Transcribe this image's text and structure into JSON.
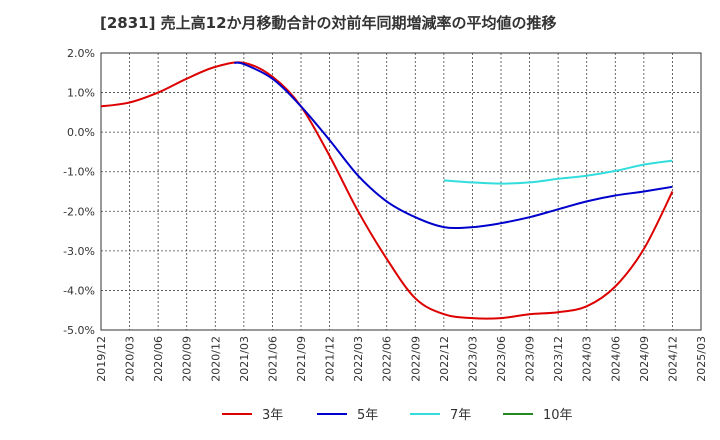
{
  "chart_data": {
    "type": "line",
    "title": "[2831]  売上高12か月移動合計の対前年同期増減率の平均値の推移",
    "xlabel": "",
    "ylabel": "",
    "ylim": [
      -5.0,
      2.0
    ],
    "y_ticks": [
      2.0,
      1.0,
      0.0,
      -1.0,
      -2.0,
      -3.0,
      -4.0,
      -5.0
    ],
    "y_tick_labels": [
      "2.0%",
      "1.0%",
      "0.0%",
      "-1.0%",
      "-2.0%",
      "-3.0%",
      "-4.0%",
      "-5.0%"
    ],
    "x_ticks": [
      "2019/12",
      "2020/03",
      "2020/06",
      "2020/09",
      "2020/12",
      "2021/03",
      "2021/06",
      "2021/09",
      "2021/12",
      "2022/03",
      "2022/06",
      "2022/09",
      "2022/12",
      "2023/03",
      "2023/06",
      "2023/09",
      "2023/12",
      "2024/03",
      "2024/06",
      "2024/09",
      "2024/12",
      "2025/03"
    ],
    "grid": true,
    "legend_position": "bottom",
    "series": [
      {
        "name": "3年",
        "color": "#dd0000",
        "points": [
          [
            "2019/12",
            0.65
          ],
          [
            "2020/03",
            0.75
          ],
          [
            "2020/06",
            1.0
          ],
          [
            "2020/09",
            1.35
          ],
          [
            "2020/12",
            1.65
          ],
          [
            "2021/03",
            1.75
          ],
          [
            "2021/06",
            1.4
          ],
          [
            "2021/09",
            0.65
          ],
          [
            "2021/12",
            -0.6
          ],
          [
            "2022/03",
            -2.0
          ],
          [
            "2022/06",
            -3.2
          ],
          [
            "2022/09",
            -4.2
          ],
          [
            "2022/12",
            -4.6
          ],
          [
            "2023/03",
            -4.7
          ],
          [
            "2023/06",
            -4.7
          ],
          [
            "2023/09",
            -4.6
          ],
          [
            "2023/12",
            -4.55
          ],
          [
            "2024/03",
            -4.4
          ],
          [
            "2024/06",
            -3.9
          ],
          [
            "2024/09",
            -2.95
          ],
          [
            "2024/12",
            -1.5
          ]
        ]
      },
      {
        "name": "5年",
        "color": "#0000cc",
        "points": [
          [
            "2021/02",
            1.75
          ],
          [
            "2021/03",
            1.72
          ],
          [
            "2021/06",
            1.35
          ],
          [
            "2021/09",
            0.65
          ],
          [
            "2021/12",
            -0.2
          ],
          [
            "2022/03",
            -1.1
          ],
          [
            "2022/06",
            -1.75
          ],
          [
            "2022/09",
            -2.15
          ],
          [
            "2022/12",
            -2.4
          ],
          [
            "2023/03",
            -2.4
          ],
          [
            "2023/06",
            -2.3
          ],
          [
            "2023/09",
            -2.15
          ],
          [
            "2023/12",
            -1.95
          ],
          [
            "2024/03",
            -1.75
          ],
          [
            "2024/06",
            -1.6
          ],
          [
            "2024/09",
            -1.5
          ],
          [
            "2024/12",
            -1.38
          ]
        ]
      },
      {
        "name": "7年",
        "color": "#33dddd",
        "points": [
          [
            "2022/12",
            -1.22
          ],
          [
            "2023/03",
            -1.27
          ],
          [
            "2023/06",
            -1.3
          ],
          [
            "2023/09",
            -1.27
          ],
          [
            "2023/12",
            -1.18
          ],
          [
            "2024/03",
            -1.1
          ],
          [
            "2024/06",
            -0.98
          ],
          [
            "2024/09",
            -0.82
          ],
          [
            "2024/12",
            -0.72
          ]
        ]
      },
      {
        "name": "10年",
        "color": "#228822",
        "points": []
      }
    ]
  }
}
